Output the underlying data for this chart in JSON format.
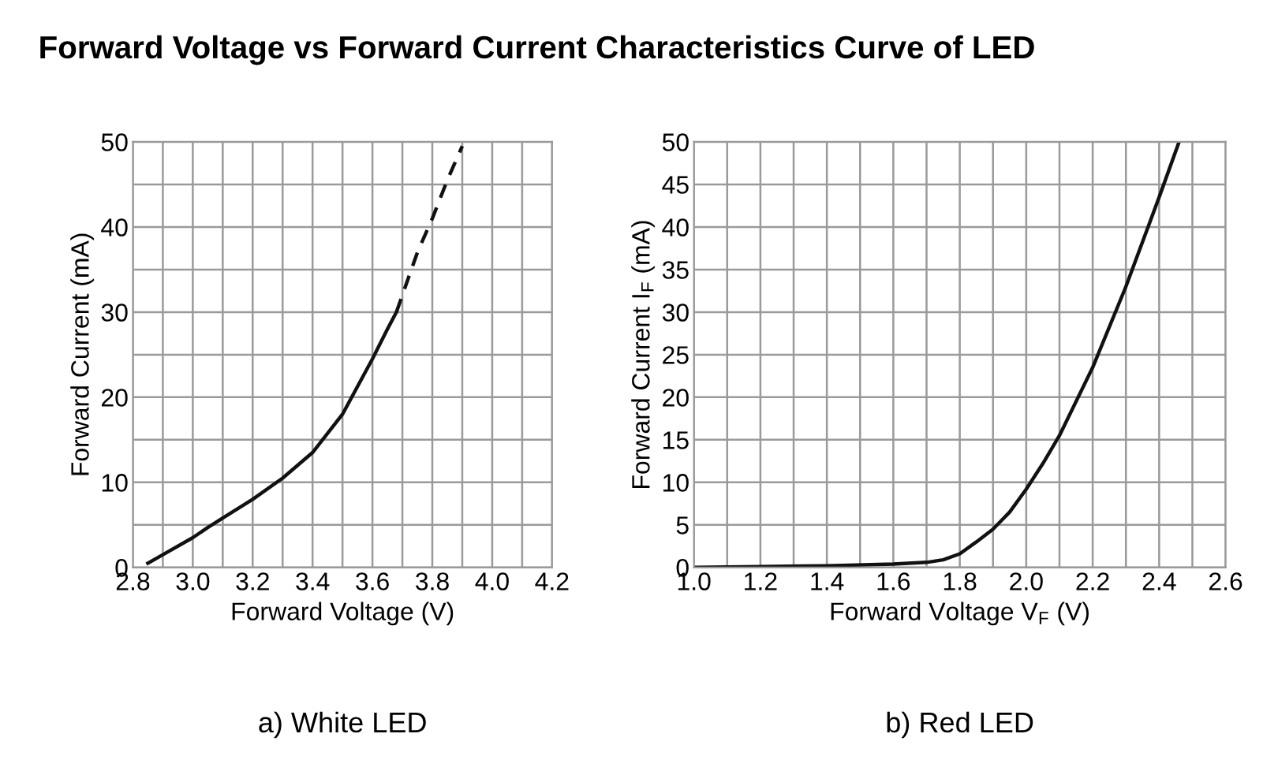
{
  "chart_data": [
    {
      "type": "line",
      "title": "Forward Voltage vs Forward Current Characteristics Curve of LED",
      "xlabel": "Forward Voltage (V)",
      "ylabel": "Forward Current (mA)",
      "annotations": [
        "a) White LED"
      ],
      "series": [
        {
          "color": "#111111",
          "line_style": "solid",
          "x": [
            2.85,
            2.9,
            3.0,
            3.05,
            3.1,
            3.2,
            3.3,
            3.4,
            3.5,
            3.6,
            3.65,
            3.68
          ],
          "values": [
            0.5,
            1.5,
            3.5,
            4.7,
            5.8,
            8,
            10.5,
            13.5,
            18,
            24.5,
            28,
            30
          ]
        },
        {
          "color": "#111111",
          "line_style": "dashed",
          "x": [
            3.68,
            3.75,
            3.8,
            3.85,
            3.9
          ],
          "values": [
            30,
            37,
            41,
            45.5,
            49.5
          ]
        }
      ],
      "xlim": [
        2.8,
        4.2
      ],
      "ylim": [
        0,
        50
      ],
      "xticks": [
        {
          "value": 2.8,
          "label": "2.8"
        },
        {
          "value": 2.9,
          "label": null
        },
        {
          "value": 3.0,
          "label": "3.0"
        },
        {
          "value": 3.1,
          "label": null
        },
        {
          "value": 3.2,
          "label": "3.2"
        },
        {
          "value": 3.3,
          "label": null
        },
        {
          "value": 3.4,
          "label": "3.4"
        },
        {
          "value": 3.5,
          "label": null
        },
        {
          "value": 3.6,
          "label": "3.6"
        },
        {
          "value": 3.7,
          "label": null
        },
        {
          "value": 3.8,
          "label": "3.8"
        },
        {
          "value": 3.9,
          "label": null
        },
        {
          "value": 4.0,
          "label": "4.0"
        },
        {
          "value": 4.1,
          "label": null
        },
        {
          "value": 4.2,
          "label": "4.2"
        }
      ],
      "yticks": [
        0,
        {
          "value": 5,
          "label": null
        },
        10,
        {
          "value": 15,
          "label": null
        },
        20,
        {
          "value": 25,
          "label": null
        },
        30,
        {
          "value": 35,
          "label": null
        },
        40,
        {
          "value": 45,
          "label": null
        },
        50
      ],
      "grid": true,
      "legend": false
    },
    {
      "type": "line",
      "xlabel": "Forward Voltage V$_{F}$ (V)",
      "ylabel": "Forward Current I$_{F}$ (mA)",
      "annotations": [
        "b) Red LED"
      ],
      "series": [
        {
          "color": "#111111",
          "line_style": "solid",
          "x": [
            1.0,
            1.2,
            1.4,
            1.6,
            1.7,
            1.75,
            1.8,
            1.85,
            1.9,
            1.95,
            2.0,
            2.05,
            2.1,
            2.2,
            2.3,
            2.4,
            2.46
          ],
          "values": [
            0,
            0.1,
            0.2,
            0.4,
            0.6,
            0.9,
            1.6,
            3,
            4.5,
            6.5,
            9.2,
            12.2,
            15.5,
            23.5,
            33,
            43.5,
            50
          ]
        }
      ],
      "xlim": [
        1.0,
        2.6
      ],
      "ylim": [
        0,
        50
      ],
      "xticks": [
        {
          "value": 1.0,
          "label": "1.0"
        },
        {
          "value": 1.1,
          "label": null
        },
        {
          "value": 1.2,
          "label": "1.2"
        },
        {
          "value": 1.3,
          "label": null
        },
        {
          "value": 1.4,
          "label": "1.4"
        },
        {
          "value": 1.5,
          "label": null
        },
        {
          "value": 1.6,
          "label": "1.6"
        },
        {
          "value": 1.7,
          "label": null
        },
        {
          "value": 1.8,
          "label": "1.8"
        },
        {
          "value": 1.9,
          "label": null
        },
        {
          "value": 2.0,
          "label": "2.0"
        },
        {
          "value": 2.1,
          "label": null
        },
        {
          "value": 2.2,
          "label": "2.2"
        },
        {
          "value": 2.3,
          "label": null
        },
        {
          "value": 2.4,
          "label": "2.4"
        },
        {
          "value": 2.5,
          "label": null
        },
        {
          "value": 2.6,
          "label": "2.6"
        }
      ],
      "yticks": [
        0,
        5,
        10,
        15,
        20,
        25,
        30,
        35,
        40,
        45,
        50
      ],
      "grid": true,
      "legend": false
    }
  ]
}
